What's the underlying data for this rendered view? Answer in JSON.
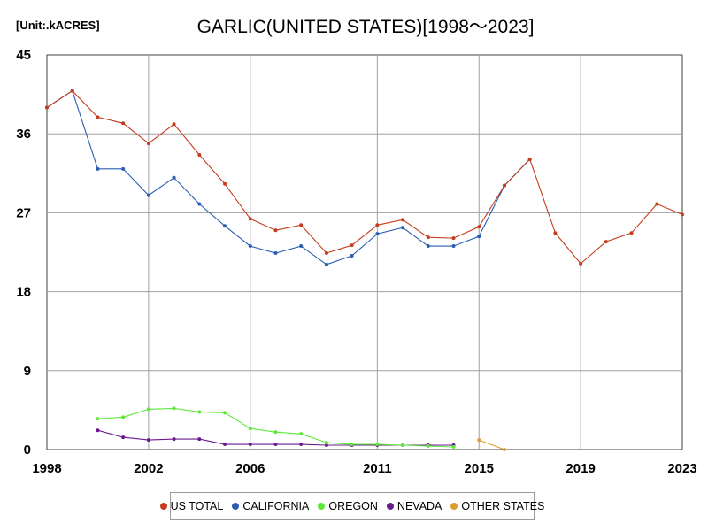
{
  "chart_data": {
    "type": "line",
    "title": "GARLIC(UNITED STATES)[1998～2023]",
    "unit_label": "[Unit:.kACRES]",
    "xlabel": "",
    "ylabel": "",
    "xlim": [
      1998,
      2023
    ],
    "ylim": [
      0,
      45
    ],
    "xticks": [
      "1998",
      "2002",
      "2006",
      "2011",
      "2015",
      "2019",
      "2023"
    ],
    "yticks": [
      "0",
      "9",
      "18",
      "27",
      "36",
      "45"
    ],
    "grid": true,
    "legend_position": "bottom",
    "series": [
      {
        "name": "US TOTAL",
        "color": "#c43c1c",
        "x": [
          1998,
          1999,
          2000,
          2001,
          2002,
          2003,
          2004,
          2005,
          2006,
          2007,
          2008,
          2009,
          2010,
          2011,
          2012,
          2013,
          2014,
          2015,
          2016,
          2017,
          2018,
          2019,
          2020,
          2021,
          2022,
          2023
        ],
        "y": [
          39.0,
          40.9,
          37.9,
          37.2,
          34.9,
          37.1,
          33.6,
          30.3,
          26.3,
          25.0,
          25.6,
          22.4,
          23.3,
          25.6,
          26.2,
          24.2,
          24.1,
          25.4,
          30.1,
          33.1,
          24.7,
          21.2,
          23.7,
          24.7,
          28.0,
          26.8
        ]
      },
      {
        "name": "CALIFORNIA",
        "color": "#2a5db0",
        "x": [
          1998,
          1999,
          2000,
          2001,
          2002,
          2003,
          2004,
          2005,
          2006,
          2007,
          2008,
          2009,
          2010,
          2011,
          2012,
          2013,
          2014,
          2015,
          2016,
          2017
        ],
        "y": [
          39.0,
          40.9,
          32.0,
          32.0,
          29.0,
          31.0,
          28.0,
          25.5,
          23.2,
          22.4,
          23.2,
          21.1,
          22.1,
          24.6,
          25.3,
          23.2,
          23.2,
          24.3,
          30.1,
          33.1
        ]
      },
      {
        "name": "OREGON",
        "color": "#5ee83a",
        "x": [
          2000,
          2001,
          2002,
          2003,
          2004,
          2005,
          2006,
          2007,
          2008,
          2009,
          2010,
          2011,
          2012,
          2013,
          2014
        ],
        "y": [
          3.5,
          3.7,
          4.6,
          4.7,
          4.3,
          4.2,
          2.4,
          2.0,
          1.8,
          0.8,
          0.6,
          0.6,
          0.5,
          0.4,
          0.3
        ]
      },
      {
        "name": "NEVADA",
        "color": "#6a1a8c",
        "x": [
          2000,
          2001,
          2002,
          2003,
          2004,
          2005,
          2006,
          2007,
          2008,
          2009,
          2010,
          2011,
          2012,
          2013,
          2014
        ],
        "y": [
          2.2,
          1.4,
          1.1,
          1.2,
          1.2,
          0.6,
          0.6,
          0.6,
          0.6,
          0.5,
          0.5,
          0.5,
          0.5,
          0.5,
          0.5
        ]
      },
      {
        "name": "OTHER STATES",
        "color": "#d9a030",
        "x": [
          2015,
          2016
        ],
        "y": [
          1.1,
          0.0
        ]
      }
    ]
  }
}
